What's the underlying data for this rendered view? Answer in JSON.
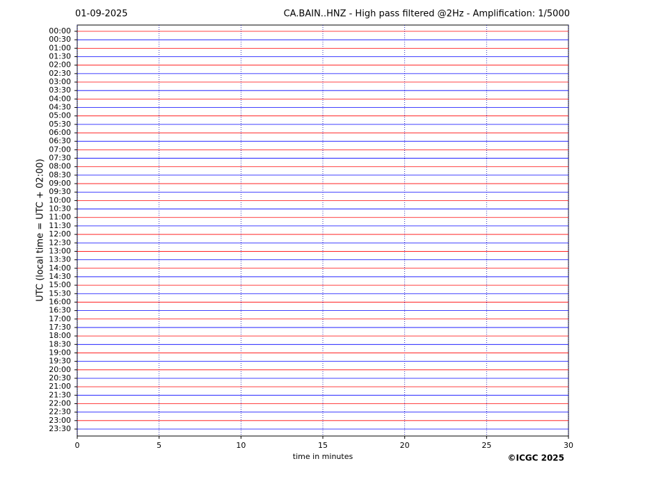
{
  "chart_data": {
    "type": "helicorder",
    "title": "CA.BAIN..HNZ - High pass filtered @2Hz - Amplification: 1/5000",
    "date": "01-09-2025",
    "ylabel": "UTC (local time = UTC + 02:00)",
    "xlabel": "time in minutes",
    "copyright": "©ICGC 2025",
    "categories": [
      "00:00",
      "00:30",
      "01:00",
      "01:30",
      "02:00",
      "02:30",
      "03:00",
      "03:30",
      "04:00",
      "04:30",
      "05:00",
      "05:30",
      "06:00",
      "06:30",
      "07:00",
      "07:30",
      "08:00",
      "08:30",
      "09:00",
      "09:30",
      "10:00",
      "10:30",
      "11:00",
      "11:30",
      "12:00",
      "12:30",
      "13:00",
      "13:30",
      "14:00",
      "14:30",
      "15:00",
      "15:30",
      "16:00",
      "16:30",
      "17:00",
      "17:30",
      "18:00",
      "18:30",
      "19:00",
      "19:30",
      "20:00",
      "20:30",
      "21:00",
      "21:30",
      "22:00",
      "22:30",
      "23:00",
      "23:30"
    ],
    "colors": [
      "#ff0000",
      "#0000ff"
    ],
    "xlim": [
      0,
      30
    ],
    "xticks": [
      0,
      5,
      10,
      15,
      20,
      25,
      30
    ],
    "grid": true
  }
}
